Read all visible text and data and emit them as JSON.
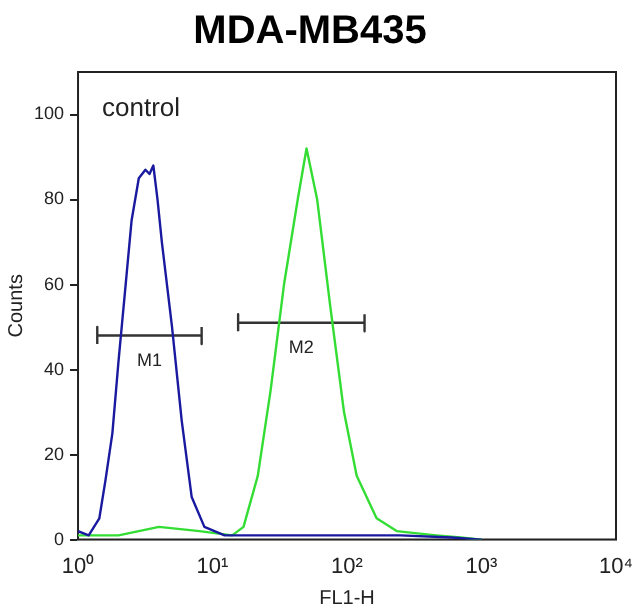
{
  "chart_data": {
    "type": "line",
    "title": "MDA-MB435",
    "xlabel": "FL1-H",
    "ylabel": "Counts",
    "log": "x",
    "grid": false,
    "legend": false,
    "marker": "none",
    "xlim": [
      1,
      10000
    ],
    "xticks": [
      {
        "value": 1,
        "label": "10⁰"
      },
      {
        "value": 10,
        "label": "10¹"
      },
      {
        "value": 100,
        "label": "10²"
      },
      {
        "value": 1000,
        "label": "10³"
      },
      {
        "value": 10000,
        "label": "10⁴"
      }
    ],
    "ylim": [
      0,
      110
    ],
    "yticks": [
      0,
      20,
      40,
      60,
      80,
      100
    ],
    "annotations": [
      "control"
    ],
    "series": [
      {
        "color": "#1a1aa0",
        "x": [
          1,
          1.2,
          1.44,
          1.6,
          1.8,
          2.0,
          2.26,
          2.5,
          2.83,
          3.17,
          3.4,
          3.63,
          3.9,
          4.2,
          5.0,
          5.9,
          7.0,
          8.7,
          12.3,
          20,
          40,
          80,
          150,
          250,
          600,
          1000
        ],
        "values": [
          2,
          1,
          5,
          14,
          25,
          42,
          60,
          75,
          85,
          87,
          86,
          88,
          80,
          70,
          50,
          28,
          10,
          3,
          1,
          1,
          1,
          1,
          1,
          1,
          0.5,
          0
        ]
      },
      {
        "color": "#33dd33",
        "x": [
          1,
          2,
          4,
          8,
          14,
          17,
          21.7,
          27,
          34,
          43,
          50,
          60,
          75,
          95,
          118,
          166,
          234,
          460,
          700,
          1000
        ],
        "values": [
          1,
          1,
          3,
          2,
          1,
          3,
          15,
          35,
          60,
          80,
          92,
          80,
          55,
          30,
          15,
          5,
          2,
          1,
          0.5,
          0
        ]
      },
      {
        "name": "M1",
        "color": "#333333",
        "x": [
          1.39,
          1.39,
          1.39,
          8.3,
          8.3,
          8.3
        ],
        "values": [
          46,
          50,
          48,
          48,
          46,
          50
        ]
      },
      {
        "name": "M2",
        "color": "#333333",
        "x": [
          15.5,
          15.5,
          15.5,
          135,
          135,
          135
        ],
        "values": [
          49,
          53,
          51,
          51,
          49,
          53
        ]
      }
    ]
  }
}
